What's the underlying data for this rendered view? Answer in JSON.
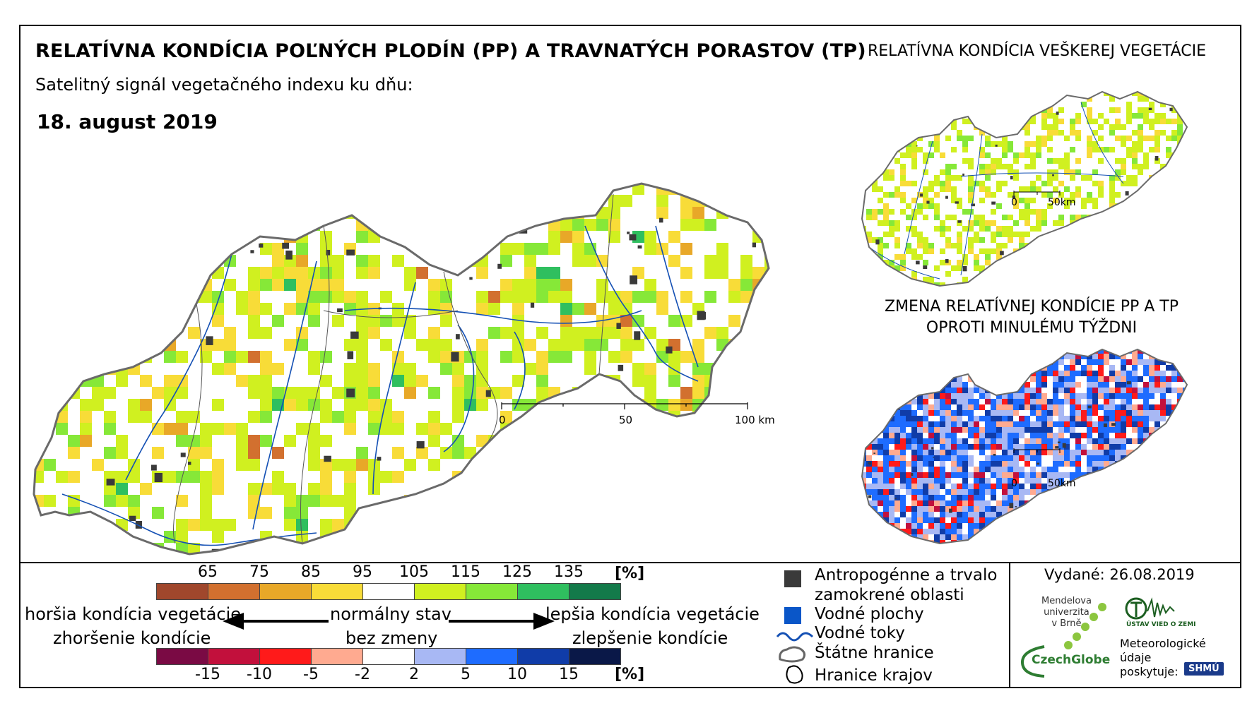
{
  "title_main": "RELATÍVNA KONDÍCIA POĽNÝCH PLODÍN (PP) A TRAVNATÝCH PORASTOV (TP)",
  "title_side": "RELATÍVNA KONDÍCIA VEŠKEREJ VEGETÁCIE",
  "subtitle": "Satelitný signál vegetačného indexu ku dňu:",
  "date": "18. august 2019",
  "change_title_line1": "ZMENA RELATÍVNEJ KONDÍCIE PP A TP",
  "change_title_line2": "OPROTI MINULÉMU TÝŽDNI",
  "main_scale": {
    "labels": [
      "0",
      "50",
      "100 km"
    ]
  },
  "mini_scale": {
    "labels": [
      "0",
      "50km"
    ]
  },
  "legend_top": {
    "ticks": [
      "65",
      "75",
      "85",
      "95",
      "105",
      "115",
      "125",
      "135"
    ],
    "unit": "[%]",
    "colors": [
      "#a0472c",
      "#d2702f",
      "#e8a828",
      "#f8dc38",
      "#ffffff",
      "#d0f020",
      "#86e838",
      "#2fbf5f",
      "#137a4a"
    ]
  },
  "legend_bottom": {
    "ticks": [
      "-15",
      "-10",
      "-5",
      "-2",
      "2",
      "5",
      "10",
      "15"
    ],
    "unit": "[%]",
    "colors": [
      "#7a0a44",
      "#c2103c",
      "#ff1a1a",
      "#ffaa90",
      "#ffffff",
      "#a8b8f4",
      "#1e6cff",
      "#103ca8",
      "#0a1848"
    ]
  },
  "conditions": {
    "worse_top": "horšia kondícia vegetácie",
    "worse_bottom": "zhoršenie kondície",
    "normal_top": "normálny stav",
    "normal_bottom": "bez zmeny",
    "better_top": "lepšia kondícia vegetácie",
    "better_bottom": "zlepšenie kondície"
  },
  "legend_items": {
    "urban_line1": "Antropogénne a trvalo",
    "urban_line2": "zamokrené oblasti",
    "water_bodies": "Vodné plochy",
    "streams": "Vodné toky",
    "state_border": "Štátne hranice",
    "region_border": "Hranice krajov"
  },
  "issued": "Vydané: 26.08.2019",
  "logos": {
    "mendelu": [
      "Mendelova",
      "univerzita",
      "v Brně"
    ],
    "czechglobe": "CzechGlobe",
    "ustav": "ÚSTAV VIED O ZEMI",
    "shmu": "SHMÚ"
  },
  "credits": [
    "Meteorologické",
    "údaje",
    "poskytuje:"
  ],
  "colors": {
    "water_symbol": "#0a56c8",
    "urban_symbol": "#3a3a3a",
    "river": "#1450b4",
    "border": "#666666"
  }
}
